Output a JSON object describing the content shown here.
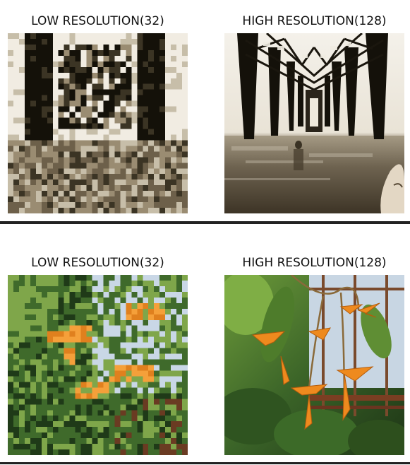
{
  "panels": [
    {
      "low_title": "LOW RESOLUTION(32)",
      "high_title": "HIGH RESOLUTION(128)",
      "palette": [
        "#141109",
        "#3b3424",
        "#6d604a",
        "#9a8c72",
        "#c7bea9",
        "#f1ece2"
      ],
      "pixelation": 32
    },
    {
      "low_title": "LOW RESOLUTION(32)",
      "high_title": "HIGH RESOLUTION(128)",
      "palette": [
        "#1f3a18",
        "#3f6a2b",
        "#7fa64a",
        "#c9d7e6",
        "#e0801e",
        "#f5a03a",
        "#6a3b22"
      ],
      "pixelation": 32
    }
  ],
  "colors": {
    "divider": "#222222",
    "background": "#ffffff"
  }
}
